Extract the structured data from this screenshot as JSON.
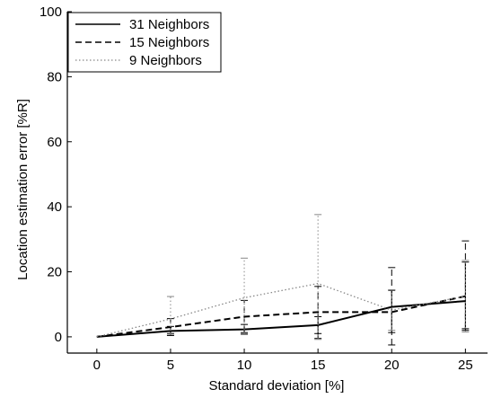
{
  "chart_data": {
    "type": "line",
    "title": "",
    "xlabel": "Standard deviation [%]",
    "ylabel": "Location estimation error [%R]",
    "xlim": [
      -2,
      26.5
    ],
    "ylim": [
      -5,
      100
    ],
    "xticks": [
      0,
      5,
      10,
      15,
      20,
      25
    ],
    "yticks": [
      0,
      20,
      40,
      60,
      80,
      100
    ],
    "xtick_labels": [
      "0",
      "5",
      "10",
      "15",
      "20",
      "25"
    ],
    "ytick_labels": [
      "0",
      "20",
      "40",
      "60",
      "80",
      "100"
    ],
    "grid": false,
    "legend_position": "top-left",
    "x": [
      0,
      5,
      10,
      15,
      20,
      25
    ],
    "series": [
      {
        "name": "31 Neighbors",
        "style": "solid",
        "color": "#000000",
        "values": [
          0,
          1.8,
          2.3,
          3.6,
          9.2,
          11.0
        ],
        "err_low": [
          0,
          0.4,
          0.8,
          1.0,
          1.3,
          2.0
        ],
        "err_high": [
          0,
          3.2,
          3.8,
          6.2,
          14.3,
          23.0
        ]
      },
      {
        "name": "15 Neighbors",
        "style": "dashed",
        "color": "#000000",
        "values": [
          0,
          3.0,
          6.2,
          7.6,
          7.6,
          12.5
        ],
        "err_low": [
          0,
          1.0,
          1.3,
          -0.5,
          -2.5,
          2.5
        ],
        "err_high": [
          0,
          5.6,
          11.2,
          15.5,
          21.3,
          29.5
        ]
      },
      {
        "name": "9 Neighbors",
        "style": "dotted",
        "color": "#888888",
        "values": [
          0,
          5.5,
          12.0,
          16.4,
          8.2,
          12.5
        ],
        "err_low": [
          0,
          0.8,
          1.0,
          -0.8,
          2.0,
          1.5
        ],
        "err_high": [
          0,
          12.4,
          24.2,
          37.6,
          14.5,
          23.5
        ]
      }
    ]
  }
}
